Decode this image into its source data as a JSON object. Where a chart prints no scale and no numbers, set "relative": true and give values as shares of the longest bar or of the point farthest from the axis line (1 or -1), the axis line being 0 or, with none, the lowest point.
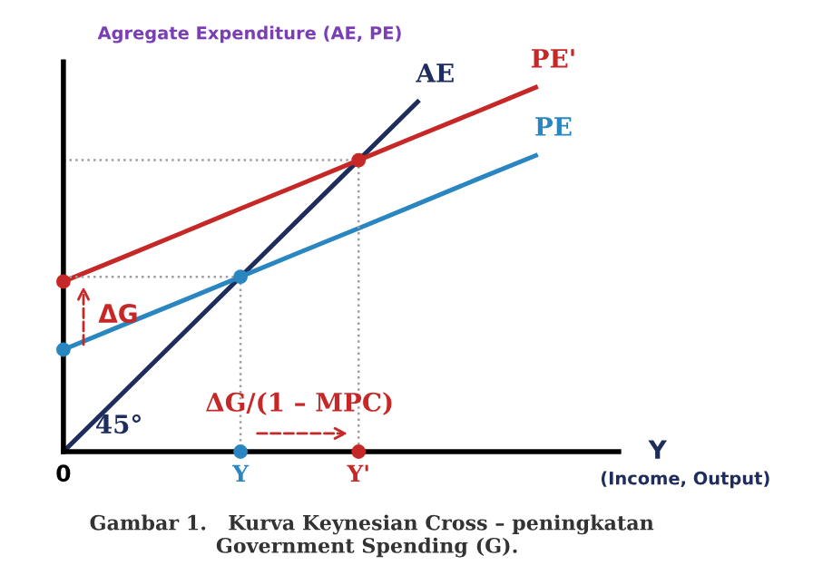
{
  "chart_data": {
    "type": "line",
    "relative": true,
    "ylabel": "Agregate Expenditure (AE, PE)",
    "xlabel": "Y",
    "categories": [
      "0",
      null,
      null,
      "Y",
      null,
      "Y'",
      null,
      null,
      null,
      null
    ],
    "series": [
      {
        "name": "AE",
        "color": "#1f2d5c",
        "values": [
          0,
          0.16,
          0.32,
          0.48,
          0.64,
          0.8,
          0.96,
          null,
          null,
          null
        ]
      },
      {
        "name": "PE'",
        "color": "#c62828",
        "values": [
          0.467,
          0.533,
          0.6,
          0.667,
          0.733,
          0.8,
          0.867,
          0.933,
          1.0,
          null
        ]
      },
      {
        "name": "PE",
        "color": "#2a86c0",
        "values": [
          0.28,
          0.347,
          0.413,
          0.48,
          0.547,
          0.613,
          0.68,
          0.747,
          0.813,
          null
        ]
      },
      {
        "color": "#9e9e9e",
        "line_style": "dotted",
        "values": [
          0.48,
          0.48,
          0.48,
          0.48,
          null,
          null,
          null,
          null,
          null,
          null
        ]
      },
      {
        "color": "#9e9e9e",
        "line_style": "dotted",
        "values": [
          0.8,
          0.8,
          0.8,
          0.8,
          0.8,
          0.8,
          null,
          null,
          null,
          null
        ]
      },
      {
        "type": "scatter",
        "color": "#2a86c0",
        "values": [
          0.28,
          null,
          null,
          0.48,
          null,
          null,
          null,
          null,
          null,
          null
        ]
      },
      {
        "type": "scatter",
        "color": "#c62828",
        "values": [
          0.467,
          null,
          null,
          null,
          null,
          0.8,
          null,
          null,
          null,
          null
        ]
      },
      {
        "type": "scatter",
        "colors": [
          null,
          null,
          null,
          "#2a86c0",
          null,
          "#c62828",
          null,
          null,
          null,
          null
        ],
        "values": [
          null,
          null,
          null,
          0,
          null,
          0,
          null,
          null,
          null,
          null
        ]
      }
    ],
    "legend": false,
    "annotations": [
      "ΔG",
      "ΔG/(1 – MPC)",
      "45°",
      "(Income, Output)",
      "Gambar 1.   Kurva Keynesian Cross – peningkatan\n                  Government Spending (G)."
    ]
  }
}
